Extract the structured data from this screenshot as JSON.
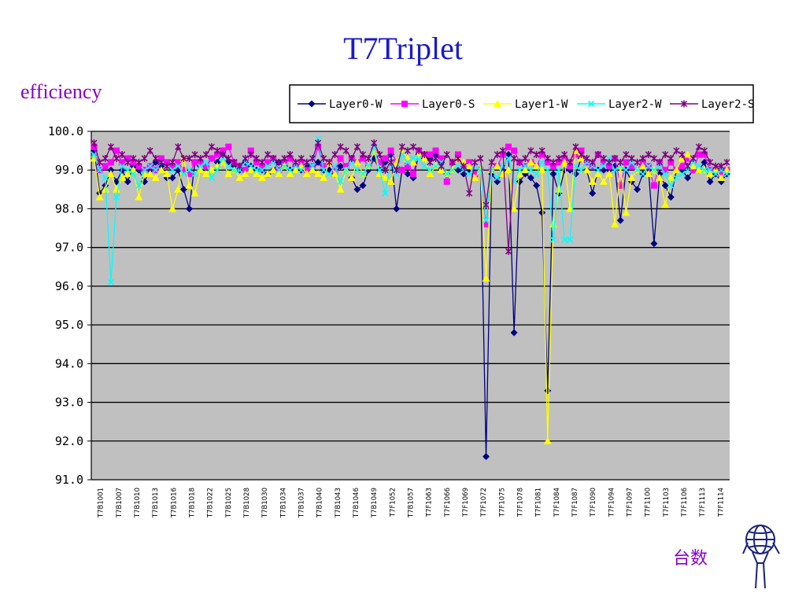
{
  "page": {
    "title": "T7Triplet",
    "ylabel": "efficiency",
    "xlabel": "台数"
  },
  "chart_data": {
    "type": "line",
    "title": "T7Triplet",
    "xlabel": "台数",
    "ylabel": "efficiency",
    "ylim": [
      91.0,
      100.0
    ],
    "yticks": [
      "100.0",
      "99.0",
      "98.0",
      "97.0",
      "96.0",
      "95.0",
      "94.0",
      "93.0",
      "92.0",
      "91.0"
    ],
    "grid": true,
    "legend_position": "top-right",
    "x_tick_labels": [
      "T7B1001",
      "T7B1007",
      "T7B1010",
      "T7B1013",
      "T7B1016",
      "T7B1018",
      "T7B1022",
      "T7B1025",
      "T7B1028",
      "T7B1030",
      "T7B1034",
      "T7B1037",
      "T7B1040",
      "T7B1043",
      "T7B1046",
      "T7B1049",
      "T7F1052",
      "T7B1057",
      "T7F1063",
      "T7F1066",
      "T7F1069",
      "T7F1072",
      "T7F1075",
      "T7F1078",
      "T7F1081",
      "T7F1084",
      "T7F1087",
      "T7F1090",
      "T7F1094",
      "T7F1097",
      "T7F1100",
      "T7F1103",
      "T7F1106",
      "T7F1113",
      "T7F1114"
    ],
    "series": [
      {
        "name": "Layer0-W",
        "color": "#000080",
        "marker": "diamond",
        "values": [
          99.5,
          98.4,
          98.6,
          99.0,
          98.7,
          99.0,
          98.7,
          99.1,
          99.0,
          98.7,
          99.0,
          99.2,
          99.1,
          98.8,
          98.8,
          99.0,
          98.5,
          98.0,
          99.2,
          99.0,
          99.1,
          99.3,
          99.2,
          99.5,
          99.2,
          99.1,
          99.0,
          99.2,
          99.1,
          99.0,
          99.0,
          98.9,
          99.0,
          99.2,
          99.1,
          99.0,
          99.1,
          99.0,
          99.1,
          99.0,
          99.2,
          99.0,
          99.0,
          98.9,
          99.1,
          99.0,
          98.8,
          98.5,
          98.6,
          99.0,
          99.3,
          99.0,
          99.2,
          99.4,
          98.0,
          99.0,
          98.9,
          98.8,
          99.4,
          99.3,
          99.3,
          99.4,
          99.2,
          98.9,
          99.0,
          99.0,
          98.9,
          99.0,
          98.9,
          99.0,
          91.6,
          98.9,
          98.7,
          99.0,
          99.4,
          94.8,
          98.7,
          98.9,
          98.8,
          98.6,
          97.9,
          93.3,
          98.9,
          98.4,
          99.0,
          99.0,
          98.9,
          99.3,
          99.0,
          98.4,
          99.0,
          99.0,
          99.0,
          99.1,
          97.7,
          99.0,
          98.7,
          98.5,
          98.9,
          99.0,
          97.1,
          98.9,
          98.6,
          98.3,
          99.0,
          99.0,
          98.8,
          99.0,
          99.0,
          99.2,
          98.7,
          98.9,
          98.7,
          98.9
        ]
      },
      {
        "name": "Layer0-S",
        "color": "#ff00ff",
        "marker": "square",
        "values": [
          99.6,
          99.0,
          99.1,
          99.2,
          99.5,
          99.2,
          99.3,
          99.2,
          99.1,
          99.0,
          99.1,
          99.0,
          99.3,
          99.2,
          99.1,
          99.2,
          99.0,
          98.9,
          99.2,
          99.2,
          99.1,
          99.3,
          99.4,
          99.5,
          99.6,
          99.2,
          99.1,
          99.0,
          99.5,
          99.2,
          99.1,
          99.2,
          99.3,
          99.0,
          99.2,
          99.3,
          99.1,
          99.2,
          99.0,
          99.1,
          99.6,
          99.1,
          99.2,
          99.0,
          99.3,
          99.1,
          99.3,
          99.2,
          99.3,
          99.1,
          99.5,
          99.2,
          99.3,
          99.5,
          99.2,
          99.0,
          99.1,
          98.9,
          99.5,
          99.4,
          99.4,
          99.5,
          99.3,
          98.7,
          99.2,
          99.4,
          99.1,
          99.2,
          98.9,
          99.0,
          97.6,
          99.0,
          99.1,
          99.4,
          99.6,
          99.5,
          99.2,
          99.1,
          99.2,
          99.1,
          99.4,
          99.2,
          99.1,
          99.2,
          99.3,
          99.1,
          99.4,
          99.5,
          99.2,
          99.1,
          99.4,
          99.2,
          99.1,
          99.3,
          98.6,
          99.2,
          99.1,
          99.0,
          99.2,
          99.1,
          98.6,
          99.2,
          99.0,
          99.2,
          99.0,
          99.1,
          99.3,
          99.0,
          99.4,
          99.4,
          99.0,
          99.0,
          98.9,
          99.0
        ]
      },
      {
        "name": "Layer1-W",
        "color": "#ffff00",
        "marker": "triangle",
        "values": [
          99.3,
          98.3,
          98.5,
          98.9,
          98.5,
          98.8,
          98.9,
          99.0,
          98.3,
          98.9,
          98.9,
          98.8,
          99.0,
          98.9,
          98.0,
          98.5,
          99.3,
          98.6,
          98.4,
          99.0,
          98.9,
          99.0,
          99.1,
          99.2,
          98.9,
          99.0,
          98.8,
          98.9,
          99.0,
          98.9,
          98.8,
          98.9,
          99.0,
          98.9,
          99.1,
          98.9,
          99.0,
          99.1,
          98.9,
          99.0,
          98.9,
          98.8,
          99.2,
          98.9,
          98.5,
          99.0,
          98.8,
          99.2,
          98.9,
          99.1,
          99.5,
          98.9,
          98.8,
          98.7,
          99.2,
          99.5,
          99.3,
          99.2,
          99.4,
          99.3,
          98.9,
          99.1,
          99.0,
          98.9,
          99.0,
          99.3,
          99.2,
          99.1,
          98.8,
          99.0,
          96.2,
          99.0,
          99.1,
          98.9,
          99.0,
          98.0,
          98.9,
          99.0,
          99.2,
          99.1,
          99.0,
          92.0,
          97.6,
          98.5,
          99.2,
          98.0,
          99.5,
          99.3,
          99.0,
          98.7,
          98.9,
          98.7,
          98.9,
          97.6,
          99.1,
          97.9,
          98.8,
          99.0,
          99.1,
          98.9,
          99.0,
          98.8,
          98.1,
          98.8,
          99.0,
          99.3,
          99.4,
          99.1,
          99.0,
          99.0,
          98.9,
          99.0,
          98.8,
          99.0
        ]
      },
      {
        "name": "Layer2-W",
        "color": "#00ffff",
        "marker": "x",
        "values": [
          99.4,
          99.0,
          98.8,
          96.1,
          98.3,
          99.1,
          99.0,
          98.9,
          98.6,
          99.0,
          99.1,
          99.0,
          99.2,
          99.1,
          99.0,
          99.1,
          98.9,
          99.0,
          98.9,
          99.1,
          99.2,
          98.8,
          99.0,
          99.3,
          99.1,
          99.0,
          99.0,
          99.2,
          99.1,
          99.0,
          99.0,
          99.1,
          99.2,
          99.0,
          99.1,
          99.0,
          99.1,
          99.0,
          99.2,
          99.1,
          99.8,
          99.0,
          98.9,
          99.1,
          98.7,
          99.0,
          99.2,
          99.0,
          98.9,
          99.1,
          99.6,
          99.0,
          98.4,
          99.2,
          98.9,
          99.4,
          99.2,
          99.3,
          99.3,
          99.1,
          99.0,
          99.1,
          99.2,
          98.9,
          99.0,
          99.1,
          99.0,
          98.9,
          99.1,
          99.0,
          97.7,
          99.0,
          98.8,
          99.1,
          99.3,
          98.7,
          99.0,
          99.1,
          99.0,
          98.9,
          99.2,
          99.0,
          97.2,
          99.0,
          97.2,
          97.2,
          99.1,
          99.0,
          99.2,
          99.1,
          99.0,
          99.1,
          99.3,
          99.0,
          99.1,
          99.0,
          99.2,
          99.0,
          98.9,
          99.1,
          99.0,
          99.1,
          98.9,
          98.6,
          98.8,
          98.9,
          99.0,
          99.2,
          99.1,
          99.0,
          99.0,
          98.9,
          99.0,
          98.9
        ]
      },
      {
        "name": "Layer2-S",
        "color": "#800080",
        "marker": "star",
        "values": [
          99.7,
          99.2,
          99.3,
          99.6,
          99.3,
          99.4,
          99.2,
          99.3,
          99.2,
          99.3,
          99.5,
          99.3,
          99.2,
          99.1,
          99.2,
          99.6,
          99.3,
          99.3,
          99.4,
          99.3,
          99.4,
          99.6,
          99.5,
          99.4,
          99.3,
          99.2,
          99.1,
          99.3,
          99.4,
          99.3,
          99.2,
          99.4,
          99.3,
          99.2,
          99.3,
          99.4,
          99.2,
          99.3,
          99.2,
          99.3,
          99.7,
          99.3,
          99.2,
          99.4,
          99.6,
          99.5,
          99.3,
          99.6,
          99.4,
          99.3,
          99.7,
          99.4,
          99.0,
          99.2,
          99.0,
          99.6,
          99.5,
          99.6,
          99.5,
          99.4,
          99.2,
          99.3,
          99.1,
          99.4,
          99.2,
          99.3,
          99.1,
          98.4,
          99.2,
          99.3,
          98.1,
          99.2,
          99.4,
          99.5,
          96.9,
          99.3,
          99.2,
          99.3,
          99.5,
          99.4,
          99.5,
          99.3,
          99.2,
          99.3,
          99.4,
          99.2,
          99.6,
          99.4,
          99.3,
          99.2,
          99.4,
          99.3,
          99.2,
          99.3,
          99.2,
          99.4,
          99.3,
          99.2,
          99.3,
          99.4,
          99.3,
          99.2,
          99.4,
          99.3,
          99.5,
          99.4,
          99.1,
          99.3,
          99.6,
          99.5,
          99.2,
          99.1,
          99.1,
          99.2
        ]
      }
    ]
  }
}
